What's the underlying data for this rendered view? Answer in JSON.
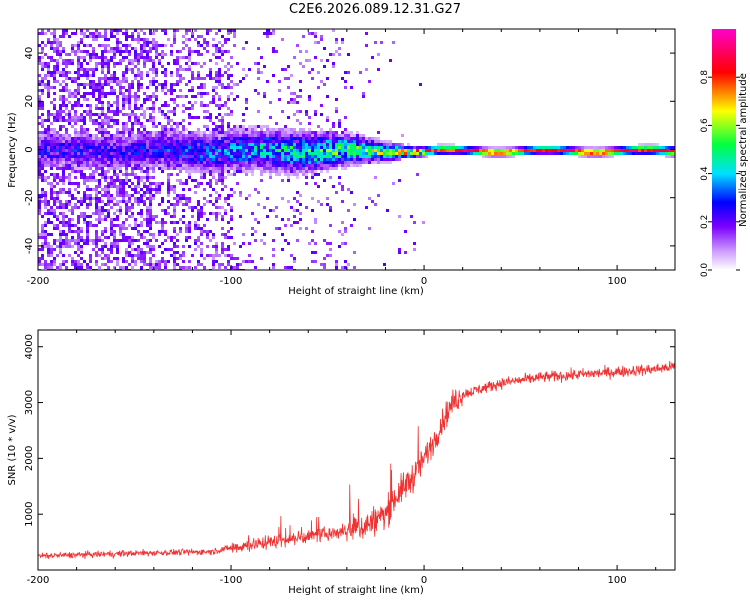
{
  "title": "C2E6.2026.089.12.31.G27",
  "chart_data": [
    {
      "type": "heatmap",
      "xlabel": "Height of straight line (km)",
      "ylabel": "Frequency (Hz)",
      "xlim": [
        -200,
        130
      ],
      "ylim": [
        -50,
        50
      ],
      "xticks": [
        -200,
        -100,
        0,
        100
      ],
      "xtick_labels": [
        "-200",
        "-100",
        "0",
        "100"
      ],
      "yticks": [
        -40,
        -20,
        0,
        20,
        40
      ],
      "ytick_labels": [
        "-40",
        "-20",
        "0",
        "20",
        "40"
      ],
      "colorbar": {
        "label": "Normalized spectral amplitude",
        "range": [
          0,
          1
        ],
        "ticks": [
          0.0,
          0.2,
          0.4,
          0.6,
          0.8
        ],
        "tick_labels": [
          "0.0",
          "0.2",
          "0.4",
          "0.6",
          "0.8"
        ],
        "colors": [
          "#ffffff",
          "#7a00ff",
          "#0000ff",
          "#00e0ff",
          "#00ff40",
          "#ffff00",
          "#ff0000",
          "#ff00cc"
        ]
      },
      "ridge": {
        "x": [
          -150,
          -100,
          -70,
          -50,
          -30,
          -10,
          0,
          20,
          60,
          100,
          130
        ],
        "bandwidth_hz": [
          12,
          14,
          14,
          12,
          8,
          4,
          3,
          2.5,
          2.5,
          2.5,
          3
        ],
        "peak_amplitude": [
          0.25,
          0.35,
          0.45,
          0.5,
          0.55,
          0.7,
          0.8,
          0.85,
          0.85,
          0.9,
          0.85
        ]
      }
    },
    {
      "type": "line",
      "color": "#ee3333",
      "xlabel": "Height of straight line (km)",
      "ylabel": "SNR (10 * v/v)",
      "xlim": [
        -200,
        130
      ],
      "ylim": [
        0,
        4300
      ],
      "xticks": [
        -200,
        -100,
        0,
        100
      ],
      "xtick_labels": [
        "-200",
        "-100",
        "0",
        "100"
      ],
      "yticks": [
        1000,
        2000,
        3000,
        4000
      ],
      "ytick_labels": [
        "1000",
        "2000",
        "3000",
        "4000"
      ],
      "trend": {
        "x": [
          -200,
          -150,
          -110,
          -100,
          -80,
          -60,
          -40,
          -30,
          -20,
          -15,
          -10,
          -5,
          0,
          5,
          10,
          15,
          20,
          30,
          40,
          60,
          80,
          100,
          120,
          130
        ],
        "y": [
          250,
          300,
          330,
          400,
          500,
          600,
          700,
          800,
          1000,
          1300,
          1500,
          1700,
          2000,
          2300,
          2700,
          3000,
          3150,
          3250,
          3350,
          3450,
          3500,
          3550,
          3600,
          3650
        ]
      }
    }
  ]
}
